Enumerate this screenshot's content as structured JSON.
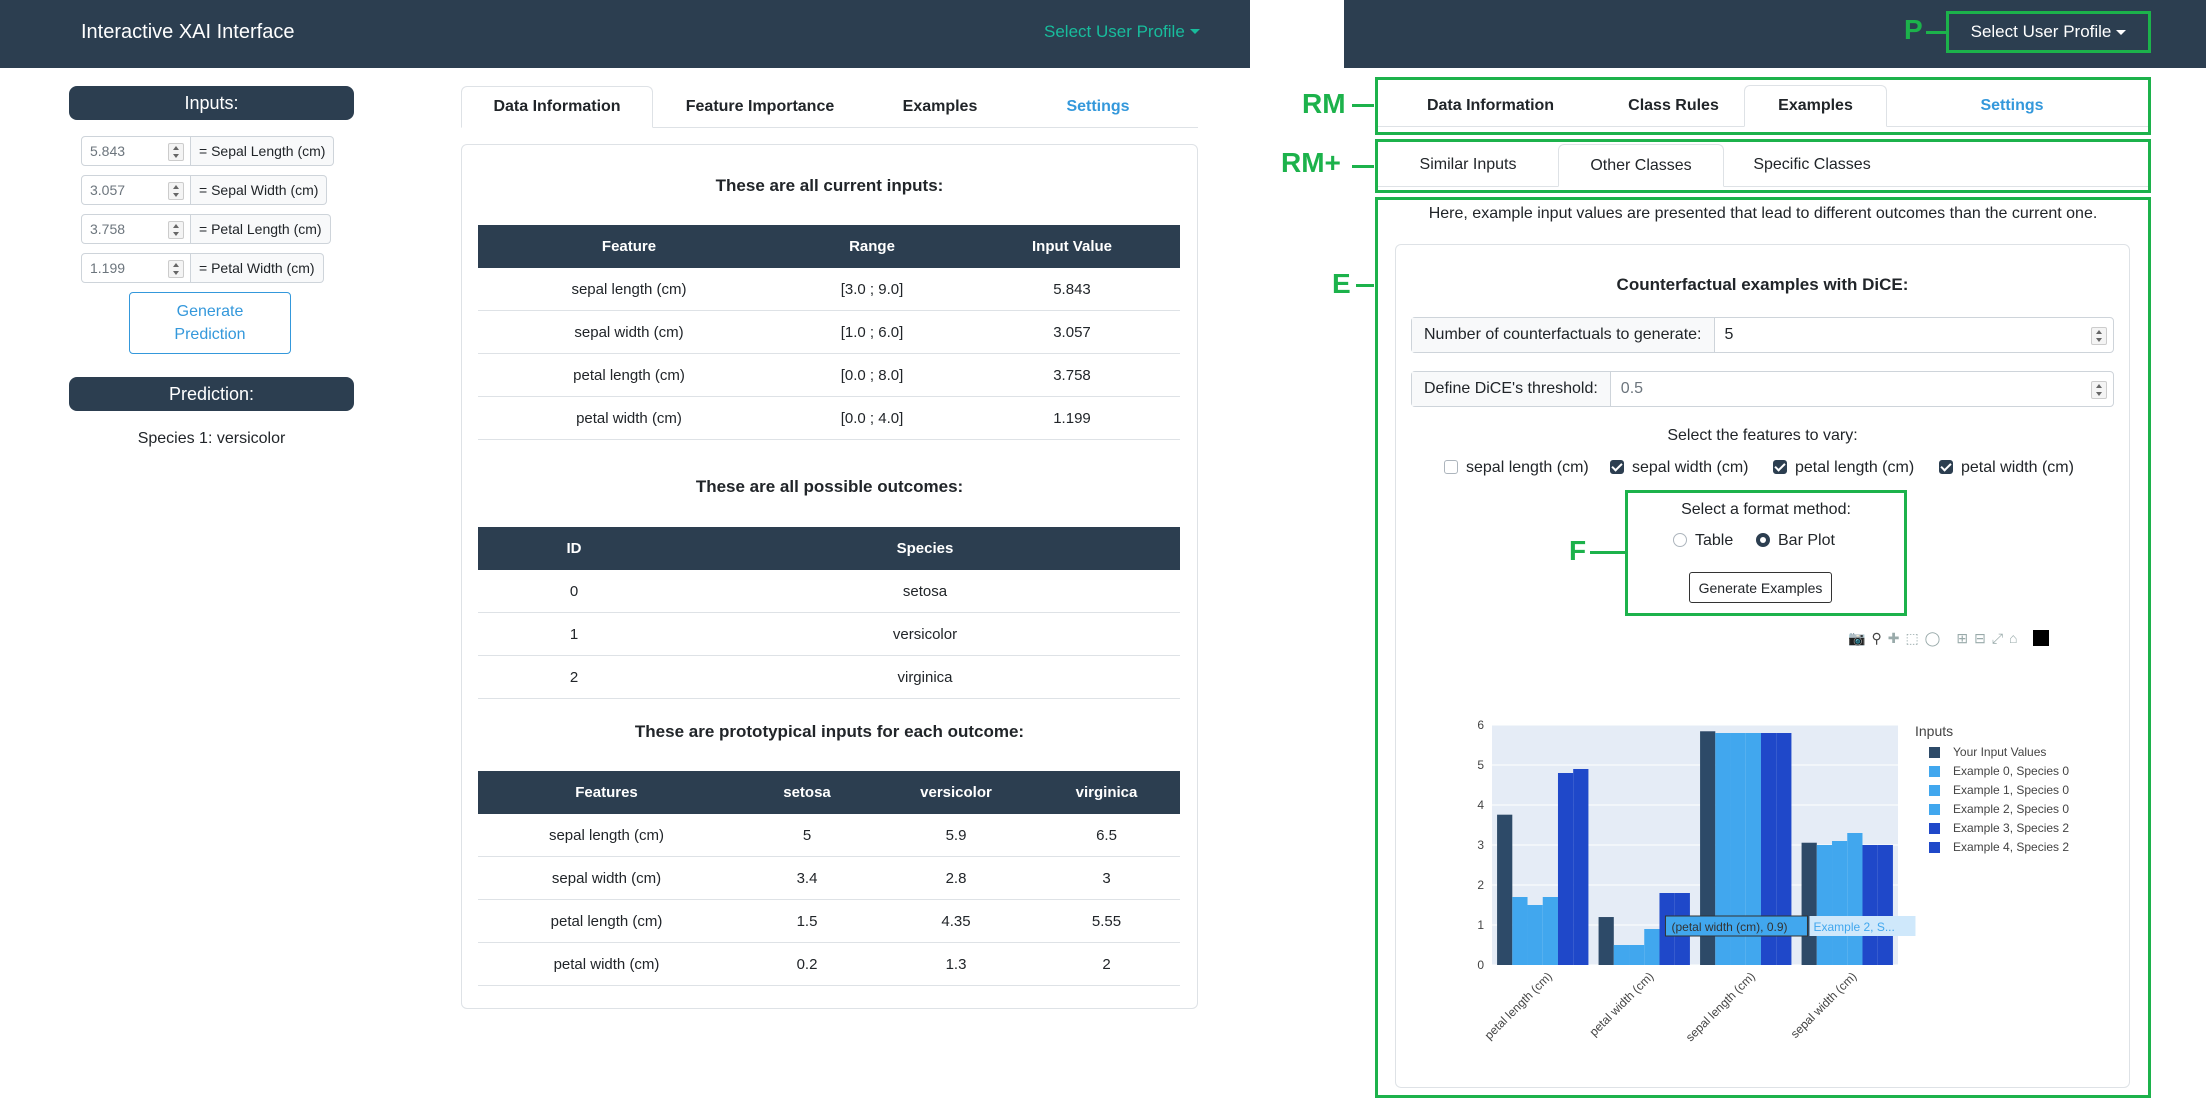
{
  "left_navbar": {
    "brand": "Interactive XAI Interface",
    "profile": "Select User Profile"
  },
  "right_navbar": {
    "profile": "Select User Profile"
  },
  "sidebar": {
    "inputs_title": "Inputs:",
    "inputs": [
      {
        "value": "5.843",
        "label": "= Sepal Length (cm)"
      },
      {
        "value": "3.057",
        "label": "= Sepal Width (cm)"
      },
      {
        "value": "3.758",
        "label": "= Petal Length (cm)"
      },
      {
        "value": "1.199",
        "label": "= Petal Width (cm)"
      }
    ],
    "generate_label": "Generate Prediction",
    "prediction_title": "Prediction:",
    "prediction_value": "Species 1: versicolor"
  },
  "left_tabs": [
    "Data Information",
    "Feature Importance",
    "Examples",
    "Settings"
  ],
  "data_info": {
    "inputs_heading": "These are all current inputs:",
    "inputs_table": {
      "headers": [
        "Feature",
        "Range",
        "Input Value"
      ],
      "rows": [
        [
          "sepal length (cm)",
          "[3.0 ; 9.0]",
          "5.843"
        ],
        [
          "sepal width (cm)",
          "[1.0 ; 6.0]",
          "3.057"
        ],
        [
          "petal length (cm)",
          "[0.0 ; 8.0]",
          "3.758"
        ],
        [
          "petal width (cm)",
          "[0.0 ; 4.0]",
          "1.199"
        ]
      ]
    },
    "outcomes_heading": "These are all possible outcomes:",
    "outcomes_table": {
      "headers": [
        "ID",
        "Species"
      ],
      "rows": [
        [
          "0",
          "setosa"
        ],
        [
          "1",
          "versicolor"
        ],
        [
          "2",
          "virginica"
        ]
      ]
    },
    "proto_heading": "These are prototypical inputs for each outcome:",
    "proto_table": {
      "headers": [
        "Features",
        "setosa",
        "versicolor",
        "virginica"
      ],
      "rows": [
        [
          "sepal length (cm)",
          "5",
          "5.9",
          "6.5"
        ],
        [
          "sepal width (cm)",
          "3.4",
          "2.8",
          "3"
        ],
        [
          "petal length (cm)",
          "1.5",
          "4.35",
          "5.55"
        ],
        [
          "petal width (cm)",
          "0.2",
          "1.3",
          "2"
        ]
      ]
    }
  },
  "annotations": {
    "p": "P",
    "rm": "RM",
    "rm_plus": "RM+",
    "e": "E",
    "f": "F"
  },
  "right_tabs": [
    "Data Information",
    "Class Rules",
    "Examples",
    "Settings"
  ],
  "sub_tabs": [
    "Similar Inputs",
    "Other Classes",
    "Specific Classes"
  ],
  "examples": {
    "intro": "Here, example input values are presented that lead to different outcomes than the current one.",
    "card_title": "Counterfactual examples with DiCE:",
    "num_label": "Number of counterfactuals to generate:",
    "num_value": "5",
    "threshold_label": "Define DiCE's threshold:",
    "threshold_placeholder": "0.5",
    "features_heading": "Select the features to vary:",
    "features": [
      {
        "label": "sepal length (cm)",
        "checked": false
      },
      {
        "label": "sepal width (cm)",
        "checked": true
      },
      {
        "label": "petal length (cm)",
        "checked": true
      },
      {
        "label": "petal width (cm)",
        "checked": true
      }
    ],
    "format_heading": "Select a format method:",
    "format_options": [
      {
        "label": "Table",
        "selected": false
      },
      {
        "label": "Bar Plot",
        "selected": true
      }
    ],
    "generate_label": "Generate Examples"
  },
  "chart_data": {
    "type": "bar",
    "categories": [
      "petal length (cm)",
      "petal width (cm)",
      "sepal length (cm)",
      "sepal width (cm)"
    ],
    "ylim": [
      0,
      6
    ],
    "yticks": [
      0,
      1,
      2,
      3,
      4,
      5,
      6
    ],
    "legend_title": "Inputs",
    "legend_position": "right",
    "series": [
      {
        "name": "Your Input Values",
        "color": "#2d4a68",
        "values": [
          3.758,
          1.199,
          5.843,
          3.057
        ]
      },
      {
        "name": "Example 0, Species 0",
        "color": "#41a7ee",
        "values": [
          1.7,
          0.5,
          5.8,
          3.0
        ]
      },
      {
        "name": "Example 1, Species 0",
        "color": "#41a7ee",
        "values": [
          1.5,
          0.5,
          5.8,
          3.1
        ]
      },
      {
        "name": "Example 2, Species 0",
        "color": "#41a7ee",
        "values": [
          1.7,
          0.9,
          5.8,
          3.3
        ]
      },
      {
        "name": "Example 3, Species 2",
        "color": "#1f48c9",
        "values": [
          4.8,
          1.8,
          5.8,
          3.0
        ]
      },
      {
        "name": "Example 4, Species 2",
        "color": "#1f48c9",
        "values": [
          4.9,
          1.8,
          5.8,
          3.0
        ]
      }
    ],
    "hover": {
      "text": "(petal width (cm), 0.9)",
      "series_label": "Example 2, S..."
    }
  }
}
